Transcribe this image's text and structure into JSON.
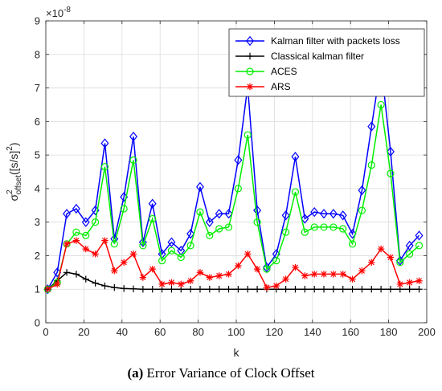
{
  "chart_data": {
    "type": "line",
    "xlabel": "k",
    "ylabel_base": "σ",
    "ylabel_sup": "2",
    "ylabel_sub": "offset",
    "ylabel_unit": "([s/s]",
    "ylabel_unit_sup": "2",
    "ylabel_close": ")",
    "xlim": [
      0,
      200
    ],
    "ylim": [
      0,
      9
    ],
    "xticks": [
      "0",
      "20",
      "40",
      "60",
      "80",
      "100",
      "120",
      "140",
      "160",
      "180",
      "200"
    ],
    "yticks": [
      "0",
      "1",
      "2",
      "3",
      "4",
      "5",
      "6",
      "7",
      "8",
      "9"
    ],
    "y_exponent_base": "×10",
    "y_exponent": "-8",
    "grid": true,
    "legend_position": "top-right",
    "x": [
      1,
      6,
      11,
      16,
      21,
      26,
      31,
      36,
      41,
      46,
      51,
      56,
      61,
      66,
      71,
      76,
      81,
      86,
      91,
      96,
      101,
      106,
      111,
      116,
      121,
      126,
      131,
      136,
      141,
      146,
      151,
      156,
      161,
      166,
      171,
      176,
      181,
      186,
      191,
      196
    ],
    "series": [
      {
        "name": "Kalman filter with packets loss",
        "color": "#0000ff",
        "marker": "diamond",
        "values": [
          1.0,
          1.5,
          3.25,
          3.4,
          3.0,
          3.35,
          5.35,
          2.5,
          3.75,
          5.55,
          2.4,
          3.55,
          2.05,
          2.4,
          2.15,
          2.65,
          4.05,
          3.0,
          3.25,
          3.25,
          4.85,
          7.05,
          3.35,
          1.65,
          2.05,
          3.2,
          4.95,
          3.1,
          3.3,
          3.25,
          3.25,
          3.2,
          2.65,
          3.95,
          5.85,
          7.7,
          5.1,
          1.85,
          2.3,
          2.6
        ]
      },
      {
        "name": "Classical kalman filter",
        "color": "#000000",
        "marker": "plus",
        "values": [
          1.0,
          1.25,
          1.5,
          1.45,
          1.3,
          1.18,
          1.1,
          1.05,
          1.02,
          1.01,
          1.0,
          1.0,
          1.0,
          1.0,
          1.0,
          1.0,
          1.0,
          1.0,
          1.0,
          1.0,
          1.0,
          1.0,
          1.0,
          1.0,
          1.0,
          1.0,
          1.0,
          1.0,
          1.0,
          1.0,
          1.0,
          1.0,
          1.0,
          1.0,
          1.0,
          1.0,
          1.0,
          1.0,
          1.0,
          1.0
        ]
      },
      {
        "name": "ACES",
        "color": "#00ee00",
        "marker": "circle",
        "values": [
          1.0,
          1.2,
          2.35,
          2.7,
          2.6,
          3.0,
          4.65,
          2.35,
          3.4,
          4.85,
          2.3,
          3.1,
          1.85,
          2.15,
          1.95,
          2.3,
          3.3,
          2.6,
          2.8,
          2.85,
          4.0,
          5.6,
          3.0,
          1.6,
          1.85,
          2.7,
          3.9,
          2.7,
          2.85,
          2.85,
          2.85,
          2.8,
          2.35,
          3.35,
          4.7,
          6.5,
          4.45,
          1.8,
          2.05,
          2.3
        ]
      },
      {
        "name": "ARS",
        "color": "#ff0000",
        "marker": "asterisk",
        "values": [
          1.0,
          1.15,
          2.35,
          2.45,
          2.2,
          2.05,
          2.45,
          1.55,
          1.8,
          2.05,
          1.35,
          1.6,
          1.15,
          1.2,
          1.15,
          1.25,
          1.5,
          1.35,
          1.4,
          1.45,
          1.7,
          2.05,
          1.6,
          1.05,
          1.1,
          1.3,
          1.65,
          1.4,
          1.45,
          1.45,
          1.45,
          1.45,
          1.3,
          1.55,
          1.8,
          2.2,
          1.95,
          1.15,
          1.2,
          1.25
        ]
      }
    ]
  },
  "caption": {
    "label": "(a)",
    "text": "Error Variance of Clock Offset"
  }
}
